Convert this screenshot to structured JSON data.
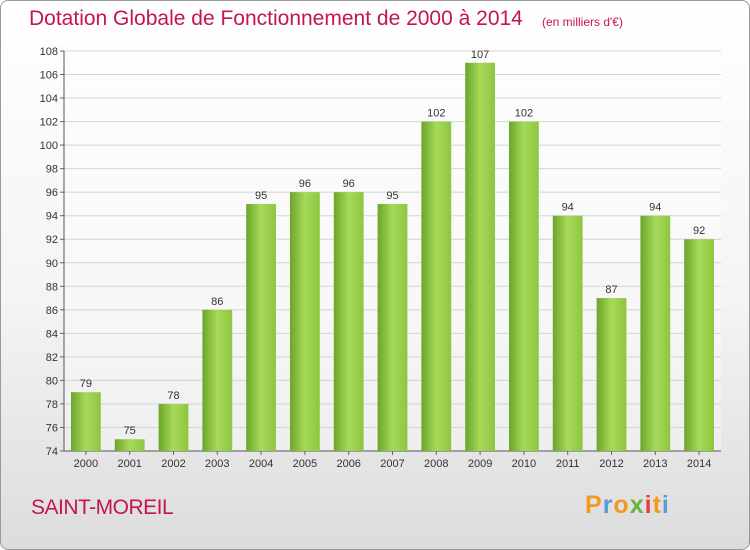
{
  "header": {
    "title": "Dotation Globale de Fonctionnement de 2000 à 2014",
    "unit": "(en milliers d'€)"
  },
  "footer": {
    "commune": "SAINT-MOREIL",
    "logo_letters": [
      "P",
      "r",
      "o",
      "x",
      "i",
      "t",
      "i"
    ],
    "logo_colors": [
      "#f39a1e",
      "#5b9bd5",
      "#f39a1e",
      "#6cb33e",
      "#e8413c",
      "#f39a1e",
      "#5b9bd5"
    ]
  },
  "chart_data": {
    "type": "bar",
    "title": "Dotation Globale de Fonctionnement de 2000 à 2014",
    "xlabel": "",
    "ylabel": "",
    "categories": [
      "2000",
      "2001",
      "2002",
      "2003",
      "2004",
      "2005",
      "2006",
      "2007",
      "2008",
      "2009",
      "2010",
      "2011",
      "2012",
      "2013",
      "2014"
    ],
    "values": [
      79,
      75,
      78,
      86,
      95,
      96,
      96,
      95,
      102,
      107,
      102,
      94,
      87,
      94,
      92
    ],
    "ylim": [
      74,
      108
    ],
    "yticks": [
      74,
      76,
      78,
      80,
      82,
      84,
      86,
      88,
      90,
      92,
      94,
      96,
      98,
      100,
      102,
      104,
      106,
      108
    ],
    "grid": true,
    "bar_color": "#8dc63f",
    "bar_color_light": "#a8d95a",
    "bar_color_dark": "#6aa52a"
  }
}
